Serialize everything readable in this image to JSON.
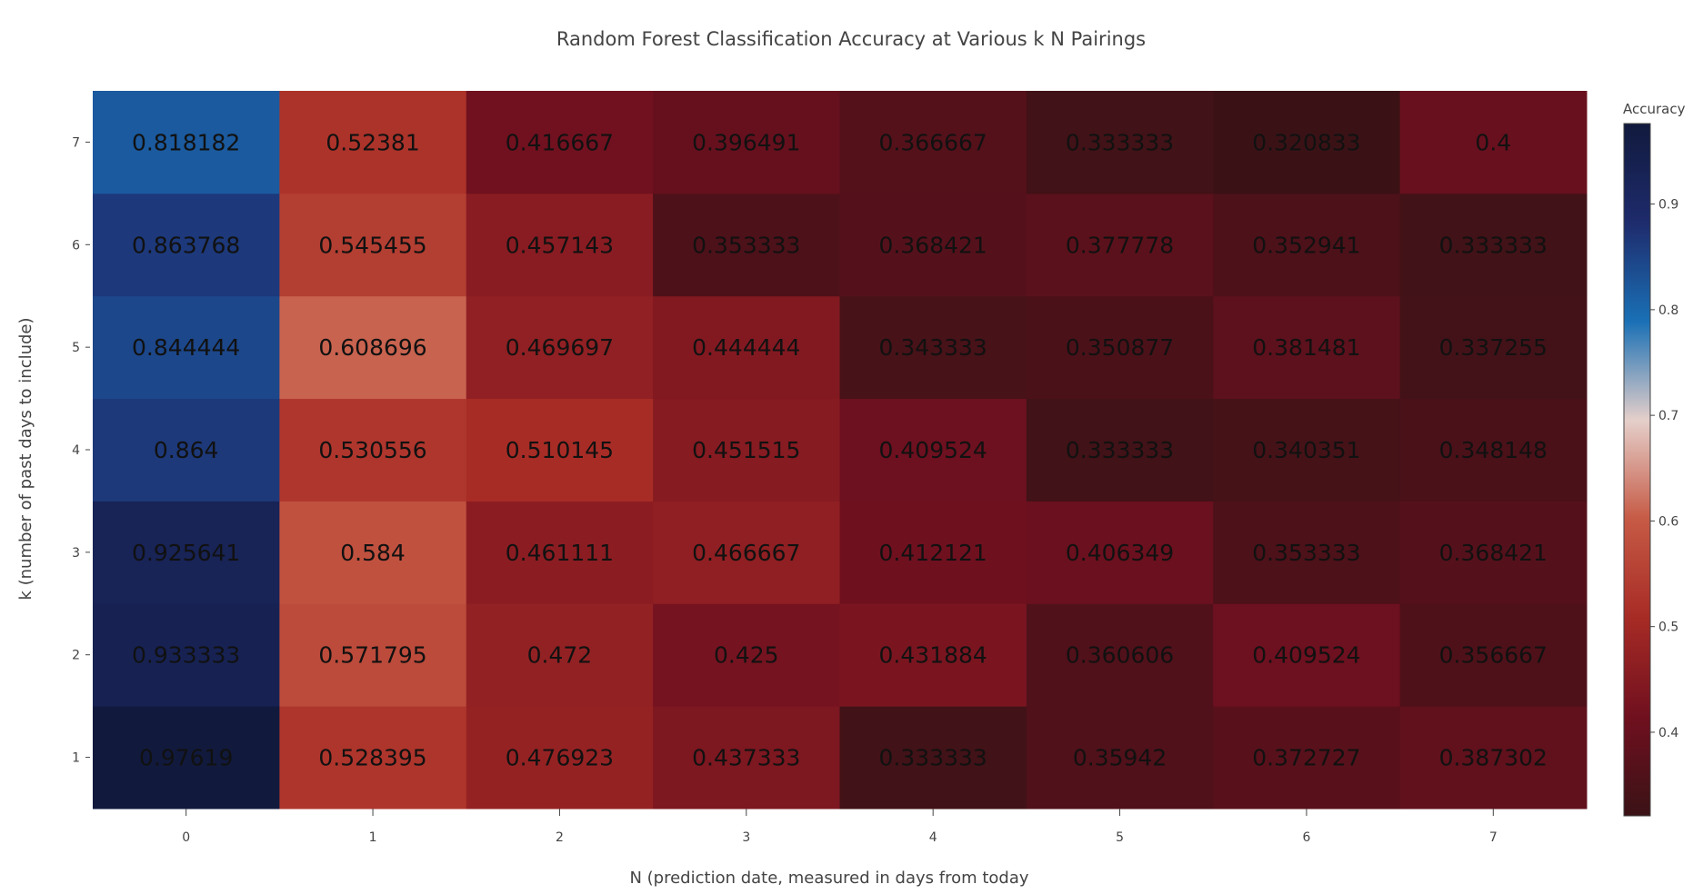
{
  "chart_data": {
    "type": "heatmap",
    "title": "Random Forest Classification Accuracy at Various k N Pairings",
    "xlabel": "N (prediction date, measured in days from today",
    "ylabel": "k (number of past days to include)",
    "x": [
      "0",
      "1",
      "2",
      "3",
      "4",
      "5",
      "6",
      "7"
    ],
    "y": [
      "1",
      "2",
      "3",
      "4",
      "5",
      "6",
      "7"
    ],
    "z": [
      [
        0.97619,
        0.528395,
        0.476923,
        0.437333,
        0.333333,
        0.35942,
        0.372727,
        0.387302
      ],
      [
        0.933333,
        0.571795,
        0.472,
        0.425,
        0.431884,
        0.360606,
        0.409524,
        0.356667
      ],
      [
        0.925641,
        0.584,
        0.461111,
        0.466667,
        0.412121,
        0.406349,
        0.353333,
        0.368421
      ],
      [
        0.864,
        0.530556,
        0.510145,
        0.451515,
        0.409524,
        0.333333,
        0.340351,
        0.348148
      ],
      [
        0.844444,
        0.608696,
        0.469697,
        0.444444,
        0.343333,
        0.350877,
        0.381481,
        0.337255
      ],
      [
        0.863768,
        0.545455,
        0.457143,
        0.353333,
        0.368421,
        0.377778,
        0.352941,
        0.333333
      ],
      [
        0.818182,
        0.52381,
        0.416667,
        0.396491,
        0.366667,
        0.333333,
        0.320833,
        0.4
      ]
    ],
    "cell_labels": [
      [
        "0.97619",
        "0.528395",
        "0.476923",
        "0.437333",
        "0.333333",
        "0.35942",
        "0.372727",
        "0.387302"
      ],
      [
        "0.933333",
        "0.571795",
        "0.472",
        "0.425",
        "0.431884",
        "0.360606",
        "0.409524",
        "0.356667"
      ],
      [
        "0.925641",
        "0.584",
        "0.461111",
        "0.466667",
        "0.412121",
        "0.406349",
        "0.353333",
        "0.368421"
      ],
      [
        "0.864",
        "0.530556",
        "0.510145",
        "0.451515",
        "0.409524",
        "0.333333",
        "0.340351",
        "0.348148"
      ],
      [
        "0.844444",
        "0.608696",
        "0.469697",
        "0.444444",
        "0.343333",
        "0.350877",
        "0.381481",
        "0.337255"
      ],
      [
        "0.863768",
        "0.545455",
        "0.457143",
        "0.353333",
        "0.368421",
        "0.377778",
        "0.352941",
        "0.333333"
      ],
      [
        "0.818182",
        "0.52381",
        "0.416667",
        "0.396491",
        "0.366667",
        "0.333333",
        "0.320833",
        "0.4"
      ]
    ],
    "zmin": 0.320833,
    "zmax": 0.97619,
    "colorbar": {
      "title": "Accuracy",
      "ticks": [
        0.4,
        0.5,
        0.6,
        0.7,
        0.8,
        0.9
      ],
      "tick_labels": [
        "0.4",
        "0.5",
        "0.6",
        "0.7",
        "0.8",
        "0.9"
      ],
      "colorscale": [
        "#3a1216",
        "#70101f",
        "#a72b25",
        "#c65a45",
        "#e5cfca",
        "#1a70b5",
        "#1e2b6c",
        "#111a3d"
      ]
    },
    "legend": "right",
    "grid": false
  }
}
